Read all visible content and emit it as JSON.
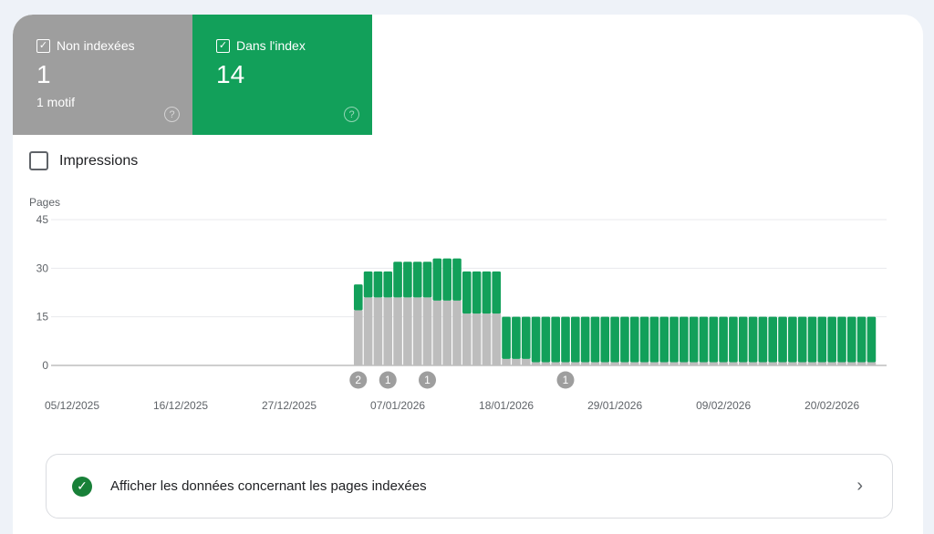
{
  "tiles": [
    {
      "label": "Non indexées",
      "value": "1",
      "sub": "1 motif",
      "color": "#9e9e9e"
    },
    {
      "label": "Dans l'index",
      "value": "14",
      "color": "#12a05a"
    }
  ],
  "impressions_label": "Impressions",
  "chart_data": {
    "type": "bar",
    "stacked": true,
    "ylabel": "Pages",
    "ylim": [
      0,
      45
    ],
    "yticks": [
      "0",
      "15",
      "30",
      "45"
    ],
    "xlim_start": "05/12/2025",
    "xticks": [
      "05/12/2025",
      "16/12/2025",
      "27/12/2025",
      "07/01/2026",
      "18/01/2026",
      "29/01/2026",
      "09/02/2026",
      "20/02/2026"
    ],
    "first_bar_date": "03/01/2026",
    "series": [
      {
        "name": "Non indexées",
        "color": "#bdbdbd",
        "values": [
          17,
          21,
          21,
          21,
          21,
          21,
          21,
          21,
          20,
          20,
          20,
          16,
          16,
          16,
          16,
          2,
          2,
          2,
          1,
          1,
          1,
          1,
          1,
          1,
          1,
          1,
          1,
          1,
          1,
          1,
          1,
          1,
          1,
          1,
          1,
          1,
          1,
          1,
          1,
          1,
          1,
          1,
          1,
          1,
          1,
          1,
          1,
          1,
          1,
          1,
          1,
          1,
          1
        ]
      },
      {
        "name": "Dans l'index",
        "color": "#12a05a",
        "values": [
          8,
          8,
          8,
          8,
          11,
          11,
          11,
          11,
          13,
          13,
          13,
          13,
          13,
          13,
          13,
          13,
          13,
          13,
          14,
          14,
          14,
          14,
          14,
          14,
          14,
          14,
          14,
          14,
          14,
          14,
          14,
          14,
          14,
          14,
          14,
          14,
          14,
          14,
          14,
          14,
          14,
          14,
          14,
          14,
          14,
          14,
          14,
          14,
          14,
          14,
          14,
          14,
          14
        ]
      }
    ],
    "annotations": [
      {
        "bar_index": 0,
        "label": "2"
      },
      {
        "bar_index": 3,
        "label": "1"
      },
      {
        "bar_index": 7,
        "label": "1"
      },
      {
        "bar_index": 21,
        "label": "1"
      }
    ]
  },
  "link_label": "Afficher les données concernant les pages indexées"
}
